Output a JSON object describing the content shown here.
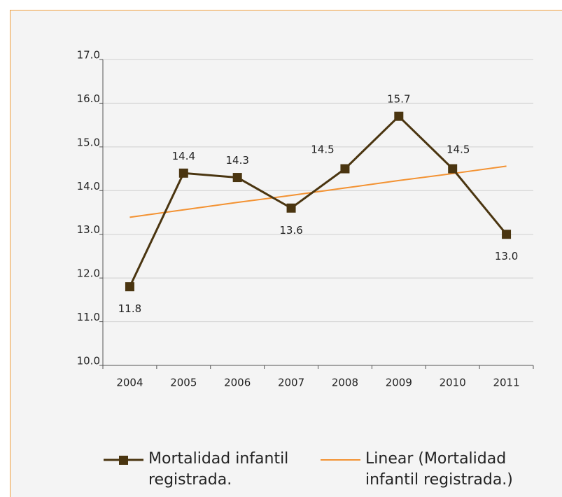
{
  "chart_data": {
    "type": "line",
    "categories": [
      "2004",
      "2005",
      "2006",
      "2007",
      "2008",
      "2009",
      "2010",
      "2011"
    ],
    "series": [
      {
        "name": "Mortalidad infantil registrada.",
        "color": "#4a3510",
        "values": [
          11.8,
          14.4,
          14.3,
          13.6,
          14.5,
          15.7,
          14.5,
          13.0
        ],
        "value_labels": [
          "11.8",
          "14.4",
          "14.3",
          "13.6",
          "14.5",
          "15.7",
          "14.5",
          "13.0"
        ]
      },
      {
        "name": "Linear (Mortalidad infantil registrada.)",
        "color": "#f39232",
        "values": [
          13.39,
          13.56,
          13.73,
          13.89,
          14.06,
          14.23,
          14.39,
          14.56
        ]
      }
    ],
    "ylim": [
      10,
      17
    ],
    "yticks": [
      {
        "value": 10,
        "label": "10.0"
      },
      {
        "value": 11,
        "label": "11.0"
      },
      {
        "value": 12,
        "label": "12.0"
      },
      {
        "value": 13,
        "label": "13.0"
      },
      {
        "value": 14,
        "label": "14.0"
      },
      {
        "value": 15,
        "label": "15.0"
      },
      {
        "value": 16,
        "label": "16.0"
      },
      {
        "value": 17,
        "label": "17.0"
      }
    ],
    "grid": true
  }
}
